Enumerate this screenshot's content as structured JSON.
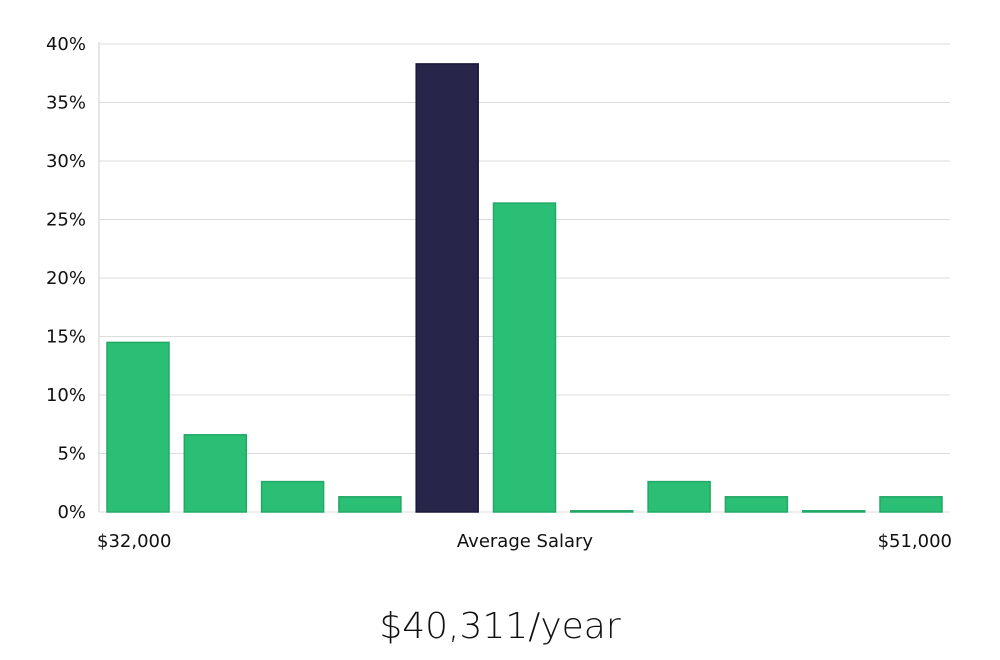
{
  "chart_data": {
    "type": "bar",
    "title": "",
    "xlabel": "Average Salary",
    "ylabel": "",
    "ylim": [
      0,
      40
    ],
    "yticks": [
      "0%",
      "5%",
      "10%",
      "15%",
      "20%",
      "25%",
      "30%",
      "35%",
      "40%"
    ],
    "ytick_values": [
      0,
      5,
      10,
      15,
      20,
      25,
      30,
      35,
      40
    ],
    "x_start_label": "$32,000",
    "x_end_label": "$51,000",
    "values": [
      14.5,
      6.6,
      2.6,
      1.3,
      38.3,
      26.4,
      0.1,
      2.6,
      1.3,
      0.1,
      1.3
    ],
    "highlight_index": 4,
    "colors": {
      "bar": "#2bbf76",
      "bar_stroke": "#22a865",
      "highlight": "#28254a",
      "highlight_stroke": "#1b1838"
    }
  },
  "salary_label": "$40,311/year"
}
